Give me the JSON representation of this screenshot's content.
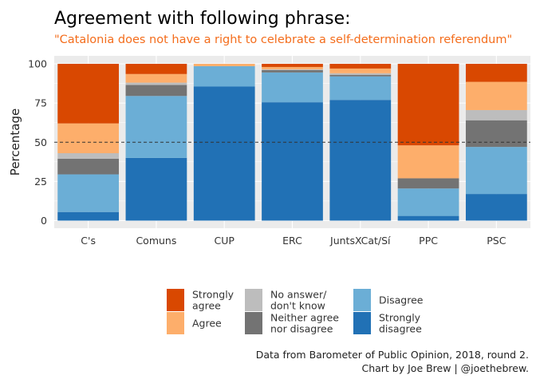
{
  "title": "Agreement with following phrase:",
  "subtitle": "\"Catalonia does not have a right to celebrate a self-determination referendum\"",
  "caption": [
    "Data from Barometer of Public Opinion, 2018, round 2.",
    "Chart by Joe Brew | @joethebrew."
  ],
  "colors": {
    "subtitle": "#f46d1c",
    "panel_background": "#ebebeb",
    "grid": "#ffffff",
    "reference_line": "#333333"
  },
  "chart_data": {
    "type": "bar",
    "stacked": true,
    "categories": [
      "C's",
      "Comuns",
      "CUP",
      "ERC",
      "JuntsXCat/Sí",
      "PPC",
      "PSC"
    ],
    "ylabel": "Percentage",
    "xlabel": "",
    "ylim": [
      0,
      100
    ],
    "yticks": [
      0,
      25,
      50,
      75,
      100
    ],
    "reference_line": 50,
    "grid": true,
    "legend_position": "bottom",
    "series": [
      {
        "name": "Strongly disagree",
        "color": "#2171b5",
        "values": [
          5.5,
          40,
          85.5,
          75.5,
          77,
          3,
          17
        ]
      },
      {
        "name": "Disagree",
        "color": "#6baed6",
        "values": [
          24,
          39.5,
          13,
          19,
          15,
          17.5,
          30
        ]
      },
      {
        "name": "Neither agree nor disagree",
        "color": "#737373",
        "values": [
          10,
          7,
          0,
          1.5,
          1,
          6.5,
          17
        ]
      },
      {
        "name": "No answer/ don't know",
        "color": "#bdbdbd",
        "values": [
          3.5,
          1.5,
          0,
          0.5,
          1,
          0,
          6.5
        ]
      },
      {
        "name": "Agree",
        "color": "#fdae6b",
        "values": [
          19,
          5.5,
          1.5,
          1.5,
          3,
          21,
          18
        ]
      },
      {
        "name": "Strongly agree",
        "color": "#d94801",
        "values": [
          38,
          6.5,
          0,
          2,
          3,
          52,
          11.5
        ]
      }
    ],
    "legend_order": [
      "Strongly agree",
      "Agree",
      "No answer/ don't know",
      "Neither agree nor disagree",
      "Disagree",
      "Strongly disagree"
    ],
    "legend_labels": {
      "Strongly agree": [
        "Strongly",
        "agree"
      ],
      "Agree": [
        "Agree"
      ],
      "No answer/ don't know": [
        "No answer/",
        "don't know"
      ],
      "Neither agree nor disagree": [
        "Neither agree",
        "nor disagree"
      ],
      "Disagree": [
        "Disagree"
      ],
      "Strongly disagree": [
        "Strongly",
        "disagree"
      ]
    }
  }
}
